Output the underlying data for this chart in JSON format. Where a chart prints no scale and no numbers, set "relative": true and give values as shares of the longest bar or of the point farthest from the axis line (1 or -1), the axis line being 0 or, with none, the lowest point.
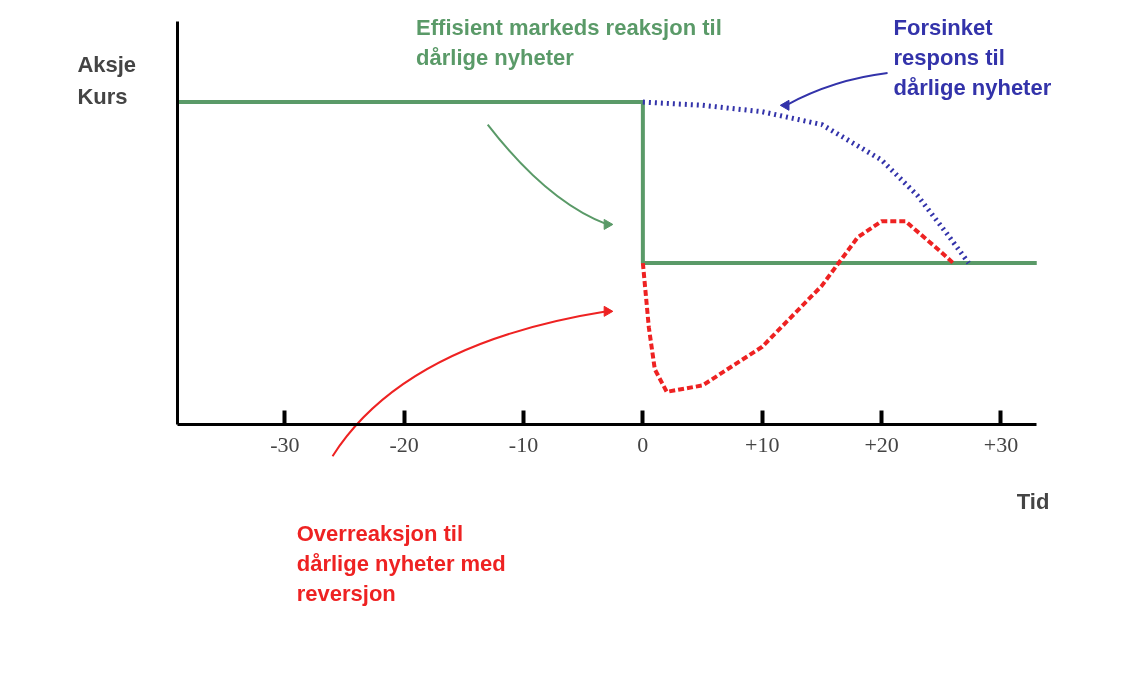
{
  "chart_data": {
    "type": "line",
    "relative": true,
    "xlabel": "Tid",
    "ylabel": "Aksje Kurs",
    "xlim": [
      -39,
      33
    ],
    "xticks": [
      {
        "value": -30,
        "label": "-30"
      },
      {
        "value": -20,
        "label": "-20"
      },
      {
        "value": -10,
        "label": "-10"
      },
      {
        "value": 0,
        "label": "0"
      },
      {
        "value": 10,
        "label": "+10"
      },
      {
        "value": 20,
        "label": "+20"
      },
      {
        "value": 30,
        "label": "+30"
      }
    ],
    "tick_labels": "x",
    "grid": false,
    "legend": false,
    "marker": "none",
    "series": [
      {
        "name": "Effisient markeds reaksjon til dårlige nyheter",
        "color": "#5a9a68",
        "line_style": "solid",
        "x": [
          -39,
          0,
          0,
          33
        ],
        "values": [
          1,
          1,
          0.5,
          0.5
        ]
      },
      {
        "name": "Forsinket respons til dårlige nyheter",
        "color": "#3333aa",
        "line_style": "dotted",
        "x": [
          0,
          5,
          10,
          15,
          20,
          23,
          25.5,
          27.3
        ],
        "values": [
          1,
          0.99,
          0.97,
          0.93,
          0.82,
          0.71,
          0.59,
          0.5
        ]
      },
      {
        "name": "Overreaksjon til dårlige nyheter med reversjon",
        "color": "#ee2222",
        "line_style": "dashed",
        "x": [
          0,
          0.5,
          1,
          2,
          5,
          10,
          15,
          18,
          20,
          22,
          24.5,
          26
        ],
        "values": [
          0.5,
          0.3,
          0.17,
          0.1,
          0.12,
          0.24,
          0.43,
          0.58,
          0.63,
          0.63,
          0.55,
          0.5
        ]
      }
    ]
  }
}
